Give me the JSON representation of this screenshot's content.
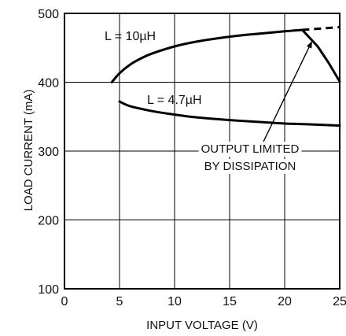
{
  "chart_data": {
    "type": "line",
    "title": "",
    "xlabel": "INPUT VOLTAGE (V)",
    "ylabel": "LOAD CURRENT (mA)",
    "xlim": [
      0,
      25
    ],
    "ylim": [
      100,
      500
    ],
    "xticks": [
      0,
      5,
      10,
      15,
      20,
      25
    ],
    "yticks": [
      100,
      200,
      300,
      400,
      500
    ],
    "grid": true,
    "series": [
      {
        "name": "L = 10µH",
        "label_text": "L = 10µH",
        "points": [
          [
            4.3,
            400
          ],
          [
            5,
            413
          ],
          [
            6,
            426
          ],
          [
            7,
            435
          ],
          [
            8,
            442
          ],
          [
            10,
            452
          ],
          [
            12,
            459
          ],
          [
            14,
            464
          ],
          [
            16,
            468
          ],
          [
            18,
            471
          ],
          [
            20,
            474
          ],
          [
            21.6,
            476
          ],
          [
            23,
            452
          ],
          [
            24,
            428
          ],
          [
            25,
            401
          ]
        ],
        "extension_dashed": [
          [
            21.6,
            476
          ],
          [
            25,
            480
          ]
        ]
      },
      {
        "name": "L = 4.7µH",
        "label_text": "L = 4.7µH",
        "points": [
          [
            5,
            372
          ],
          [
            6,
            365
          ],
          [
            8,
            358
          ],
          [
            10,
            353
          ],
          [
            12,
            349
          ],
          [
            15,
            345
          ],
          [
            18,
            342
          ],
          [
            20,
            340
          ],
          [
            22,
            339
          ],
          [
            25,
            337
          ]
        ]
      }
    ],
    "annotation": {
      "line1": "OUTPUT LIMITED",
      "line2": "BY DISSIPATION",
      "points_to": [
        22.5,
        460
      ]
    }
  }
}
